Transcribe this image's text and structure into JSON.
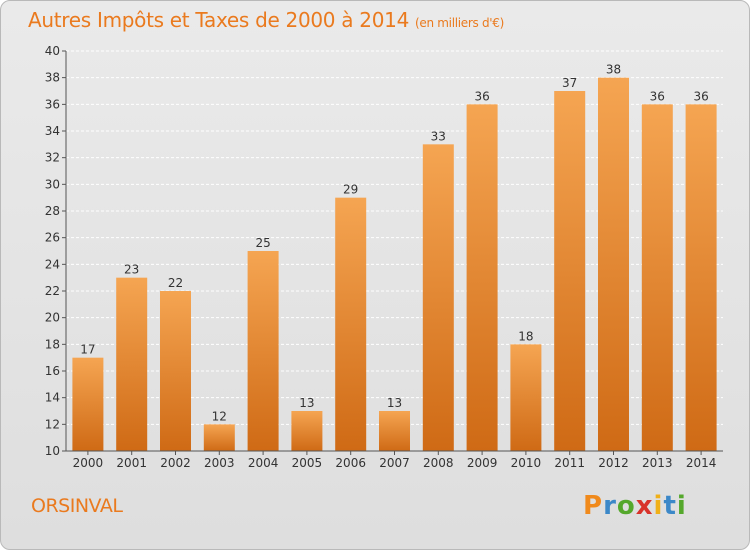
{
  "header": {
    "title": "Autres Impôts et Taxes de 2000 à 2014",
    "unit": "(en milliers d'€)"
  },
  "footer": {
    "commune": "ORSINVAL",
    "logo_letters": [
      "P",
      "r",
      "o",
      "x",
      "i",
      "t",
      "i"
    ],
    "logo_colors": [
      "#f08a1c",
      "#3c88c8",
      "#55a82c",
      "#d8322a",
      "#f0b018",
      "#3c88c8",
      "#55a82c"
    ]
  },
  "colors": {
    "bar_top": "#f5a552",
    "bar_bottom": "#cf6a15",
    "accent": "#ea7a1e",
    "grid": "#ffffff"
  },
  "chart_data": {
    "type": "bar",
    "title": "Autres Impôts et Taxes de 2000 à 2014",
    "subtitle": "(en milliers d'€)",
    "xlabel": "",
    "ylabel": "",
    "categories": [
      "2000",
      "2001",
      "2002",
      "2003",
      "2004",
      "2005",
      "2006",
      "2007",
      "2008",
      "2009",
      "2010",
      "2011",
      "2012",
      "2013",
      "2014"
    ],
    "values": [
      17,
      23,
      22,
      12,
      25,
      13,
      29,
      13,
      33,
      36,
      18,
      37,
      38,
      36,
      36
    ],
    "ylim": [
      10,
      40
    ],
    "yticks": [
      10,
      12,
      14,
      16,
      18,
      20,
      22,
      24,
      26,
      28,
      30,
      32,
      34,
      36,
      38,
      40
    ],
    "grid": true
  }
}
